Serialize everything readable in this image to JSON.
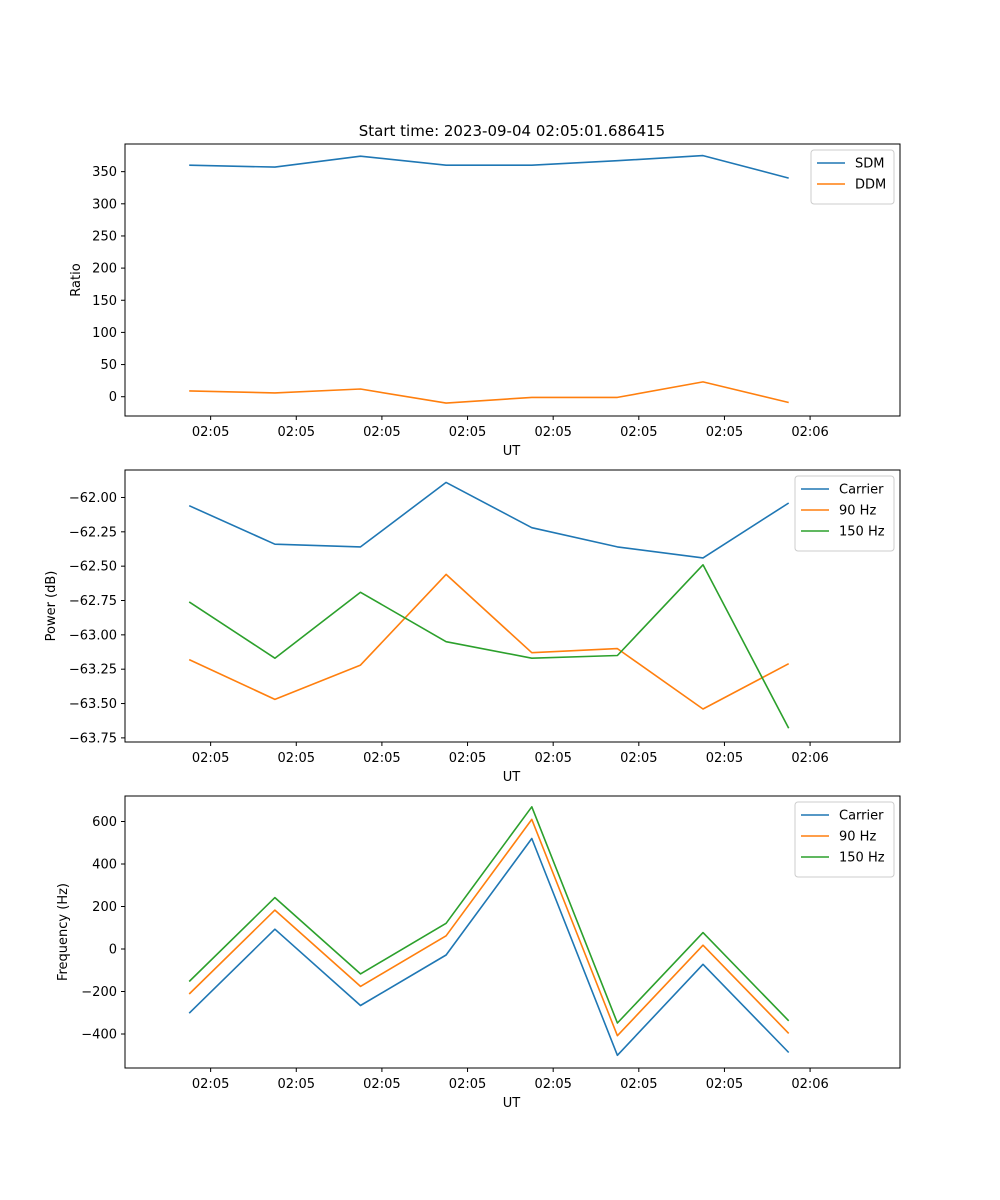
{
  "figure_title": "Start time: 2023-09-04 02:05:01.686415",
  "colors": {
    "c0": "#1f77b4",
    "c1": "#ff7f0e",
    "c2": "#2ca02c"
  },
  "chart_data": [
    {
      "type": "line",
      "ylabel": "Ratio",
      "xlabel": "UT",
      "x_index": [
        0,
        1,
        2,
        3,
        4,
        5,
        6,
        7
      ],
      "x_tick_labels": [
        "02:05",
        "02:05",
        "02:05",
        "02:05",
        "02:05",
        "02:05",
        "02:05",
        "02:06"
      ],
      "ylim": [
        -30,
        393
      ],
      "yticks": [
        0,
        50,
        100,
        150,
        200,
        250,
        300,
        350
      ],
      "legend": "top-right",
      "series": [
        {
          "name": "SDM",
          "color": "c0",
          "values": [
            360,
            357,
            374,
            360,
            360,
            367,
            375,
            340
          ]
        },
        {
          "name": "DDM",
          "color": "c1",
          "values": [
            9,
            6,
            12,
            -10,
            -1,
            -1,
            23,
            -9
          ]
        }
      ]
    },
    {
      "type": "line",
      "ylabel": "Power (dB)",
      "xlabel": "UT",
      "x_index": [
        0,
        1,
        2,
        3,
        4,
        5,
        6,
        7
      ],
      "x_tick_labels": [
        "02:05",
        "02:05",
        "02:05",
        "02:05",
        "02:05",
        "02:05",
        "02:05",
        "02:06"
      ],
      "ylim": [
        -63.78,
        -61.8
      ],
      "yticks": [
        -62.0,
        -62.25,
        -62.5,
        -62.75,
        -63.0,
        -63.25,
        -63.5,
        -63.75
      ],
      "ytick_labels": [
        "−62.00",
        "−62.25",
        "−62.50",
        "−62.75",
        "−63.00",
        "−63.25",
        "−63.50",
        "−63.75"
      ],
      "legend": "top-right",
      "series": [
        {
          "name": "Carrier",
          "color": "c0",
          "values": [
            -62.06,
            -62.34,
            -62.36,
            -61.89,
            -62.22,
            -62.36,
            -62.44,
            -62.04
          ]
        },
        {
          "name": "90 Hz",
          "color": "c1",
          "values": [
            -63.18,
            -63.47,
            -63.22,
            -62.56,
            -63.13,
            -63.1,
            -63.54,
            -63.21
          ]
        },
        {
          "name": "150 Hz",
          "color": "c2",
          "values": [
            -62.76,
            -63.17,
            -62.69,
            -63.05,
            -63.17,
            -63.15,
            -62.49,
            -63.68
          ]
        }
      ]
    },
    {
      "type": "line",
      "ylabel": "Frequency (Hz)",
      "xlabel": "UT",
      "x_index": [
        0,
        1,
        2,
        3,
        4,
        5,
        6,
        7
      ],
      "x_tick_labels": [
        "02:05",
        "02:05",
        "02:05",
        "02:05",
        "02:05",
        "02:05",
        "02:05",
        "02:06"
      ],
      "ylim": [
        -560,
        720
      ],
      "yticks": [
        600,
        400,
        200,
        0,
        -200,
        -400
      ],
      "ytick_labels": [
        "600",
        "400",
        "200",
        "0",
        "−200",
        "−400"
      ],
      "legend": "top-right",
      "series": [
        {
          "name": "Carrier",
          "color": "c0",
          "values": [
            -302,
            93,
            -266,
            -28,
            520,
            -500,
            -72,
            -487
          ]
        },
        {
          "name": "90 Hz",
          "color": "c1",
          "values": [
            -212,
            183,
            -176,
            62,
            610,
            -408,
            18,
            -397
          ]
        },
        {
          "name": "150 Hz",
          "color": "c2",
          "values": [
            -153,
            242,
            -117,
            121,
            669,
            -348,
            77,
            -338
          ]
        }
      ]
    }
  ]
}
